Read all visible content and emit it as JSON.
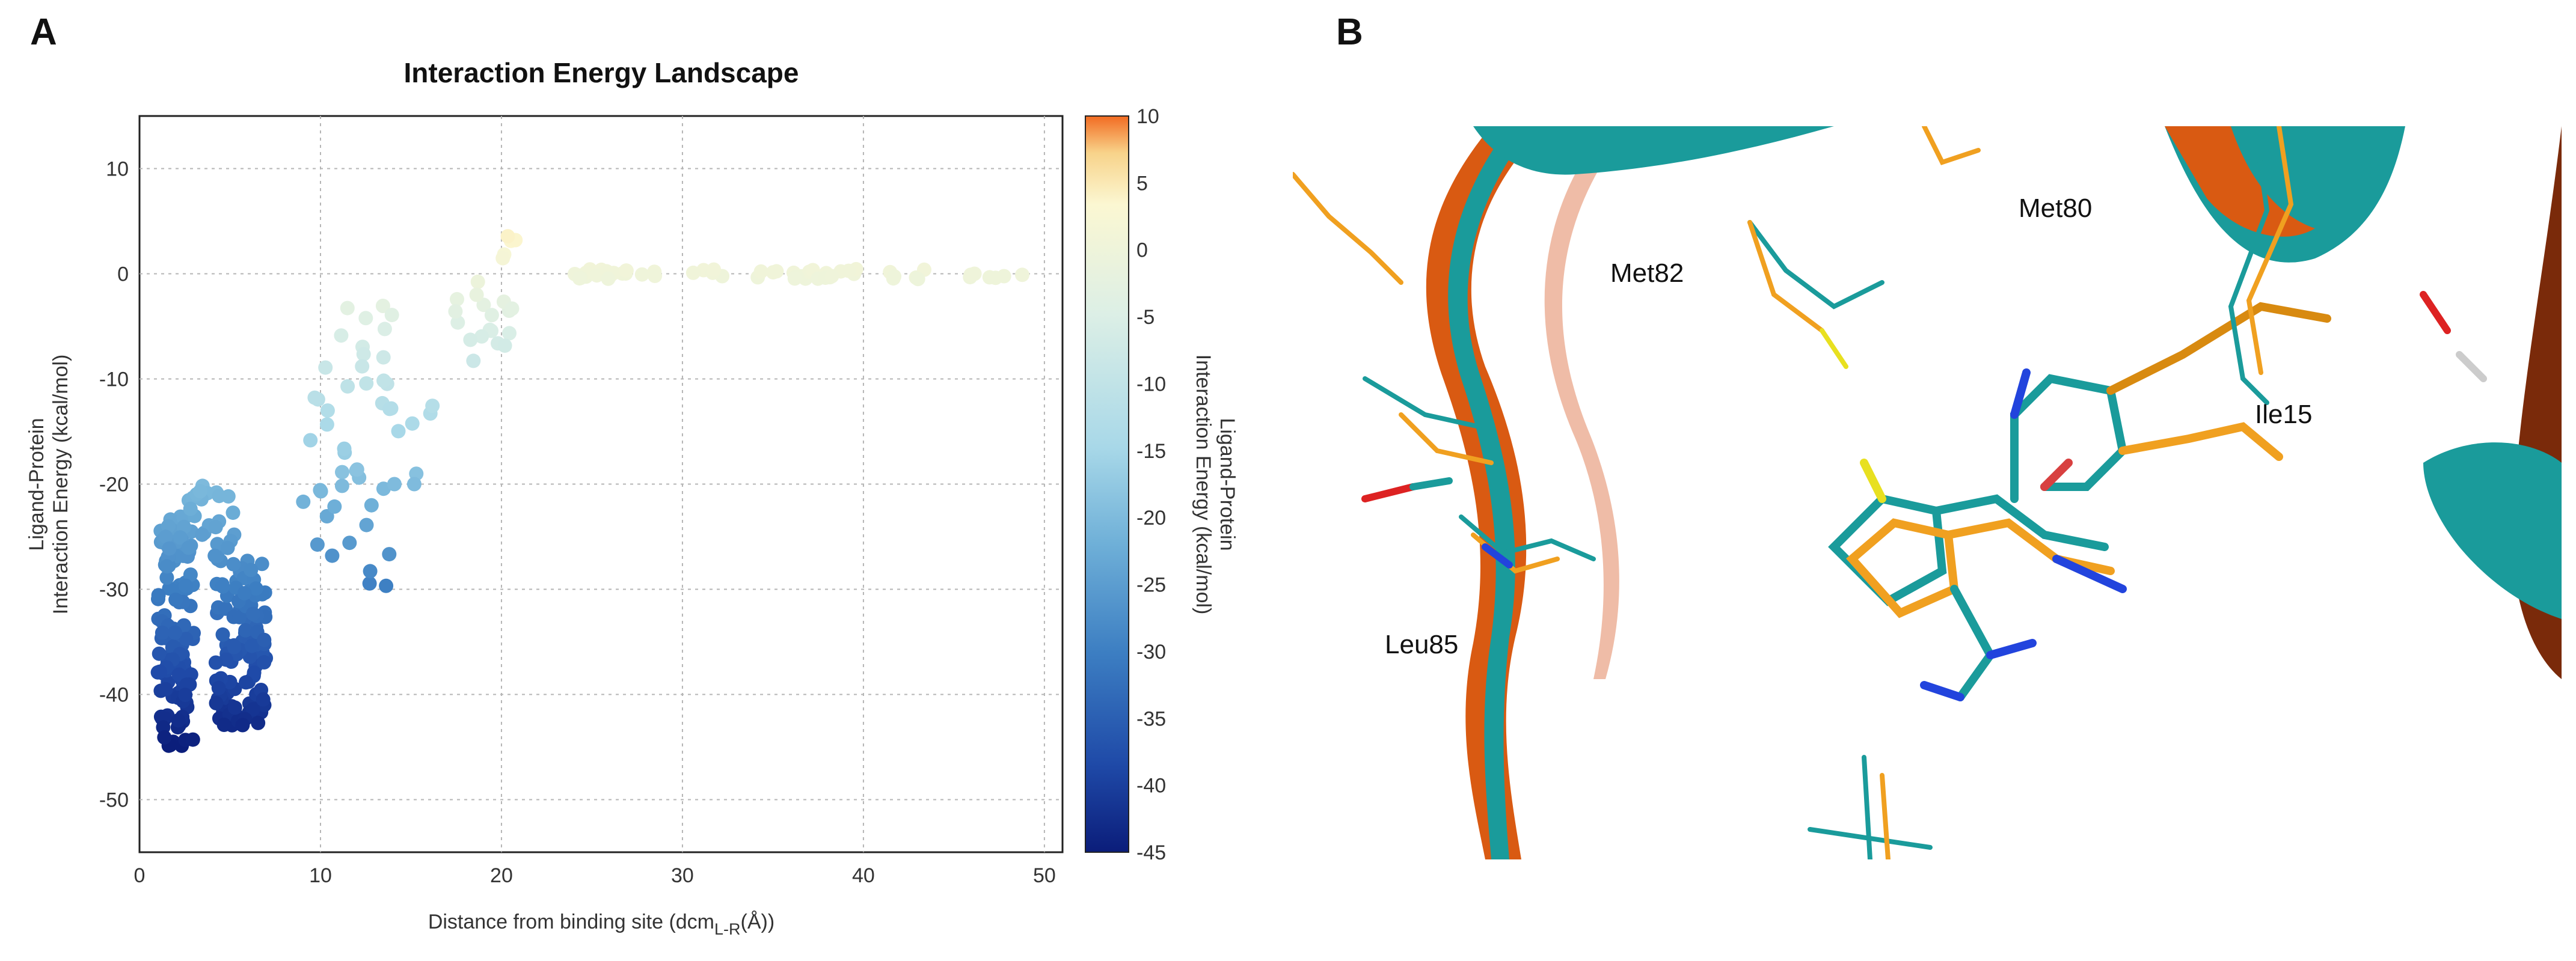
{
  "panel_labels": {
    "left": "A",
    "right": "B"
  },
  "chart_data": {
    "type": "scatter",
    "title": "Interaction Energy Landscape",
    "xlabel": "Distance from binding site (dcm",
    "xlabel_sub": "L-R",
    "xlabel_tail": "(Å))",
    "ylabel_line1": "Ligand-Protein",
    "ylabel_line2": "Interaction Energy (kcal/mol)",
    "xlim": [
      0,
      51
    ],
    "ylim": [
      -55,
      15
    ],
    "xticks": [
      "0",
      "10",
      "20",
      "30",
      "40",
      "50"
    ],
    "yticks": [
      "10",
      "0",
      "-10",
      "-20",
      "-30",
      "-40",
      "-50"
    ],
    "grid": true,
    "colorbar": {
      "label_line1": "Ligand-Protein",
      "label_line2": "Interaction Energy (kcal/mol)",
      "range": [
        -45,
        10
      ],
      "ticks": [
        "10",
        "5",
        "0",
        "-5",
        "-10",
        "-15",
        "-20",
        "-25",
        "-30",
        "-35",
        "-40",
        "-45"
      ],
      "colors": [
        "#0b1d7a",
        "#1f4aa8",
        "#3c7ec2",
        "#6fb0d8",
        "#a8d8e8",
        "#dcefe6",
        "#fbf7d2",
        "#f8d38a",
        "#f26b22"
      ]
    },
    "clusters": [
      {
        "name": "cluster near x=2",
        "x_range": [
          1,
          3
        ],
        "y_range": [
          -45,
          -23
        ],
        "count": 140
      },
      {
        "name": "cluster near x=5.5",
        "x_range": [
          4.2,
          7
        ],
        "y_range": [
          -43,
          -27
        ],
        "count": 110
      },
      {
        "name": "upper arm near x=3.5",
        "x_range": [
          2.5,
          5.5
        ],
        "y_range": [
          -27,
          -20
        ],
        "count": 25
      },
      {
        "name": "spread 9-14",
        "x_range": [
          9,
          14
        ],
        "y_range": [
          -30,
          -3
        ],
        "count": 45
      },
      {
        "name": "rising 13-21",
        "x_range": [
          13.5,
          21
        ],
        "y_range": [
          -20,
          5
        ],
        "count": 30
      },
      {
        "name": "plateau",
        "x_range": [
          24,
          50
        ],
        "y_range": [
          -0.5,
          0.5
        ],
        "count": 60
      }
    ]
  },
  "structure": {
    "residue_labels": [
      "Met82",
      "Met80",
      "Ile15",
      "Leu85"
    ]
  }
}
